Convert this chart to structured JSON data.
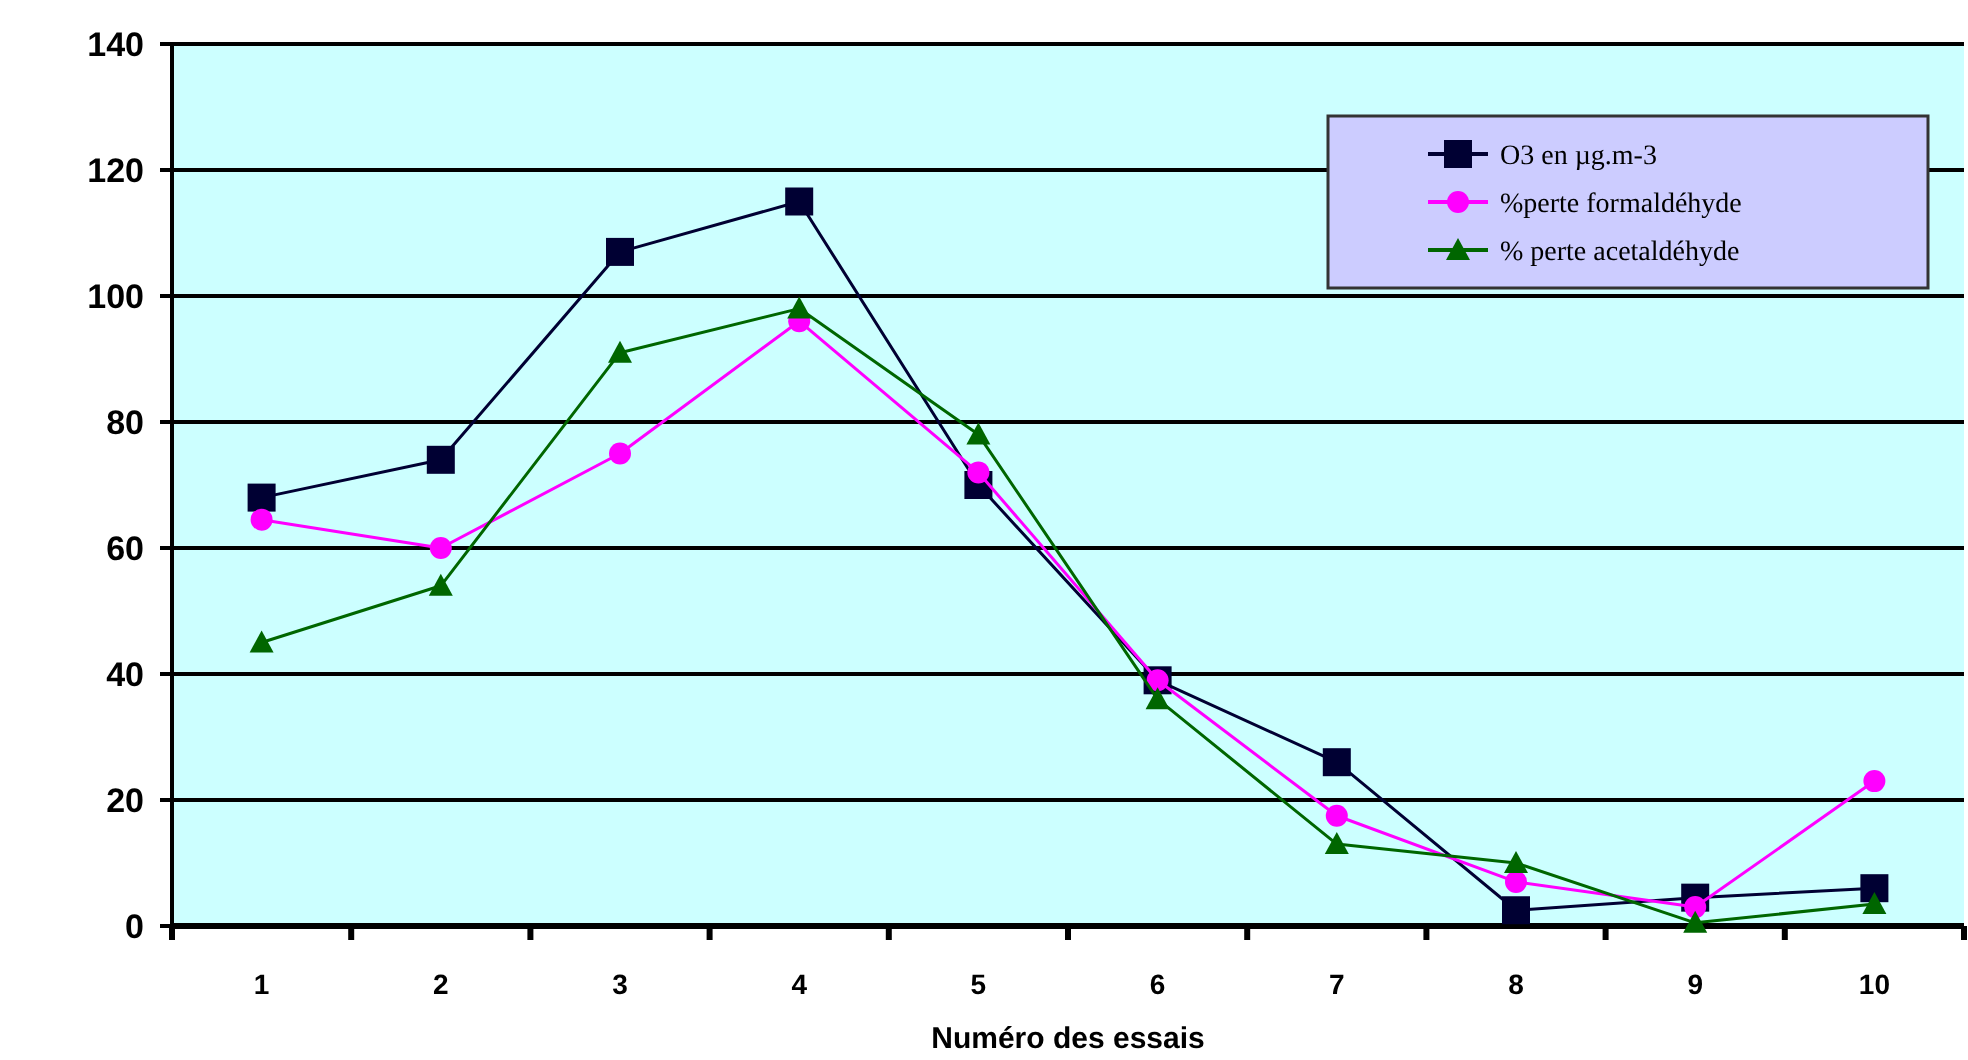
{
  "chart_data": {
    "type": "line",
    "xlabel": "Numéro des essais",
    "categories": [
      "1",
      "2",
      "3",
      "4",
      "5",
      "6",
      "7",
      "8",
      "9",
      "10"
    ],
    "series": [
      {
        "name": "O3 en µg.m-3",
        "color": "#000033",
        "marker": "square",
        "values": [
          68,
          74,
          107,
          115,
          70,
          39,
          26,
          2.5,
          4.5,
          6
        ]
      },
      {
        "name": "%perte formaldéhyde",
        "color": "#ff00ff",
        "marker": "circle",
        "values": [
          64.5,
          60,
          75,
          96,
          72,
          39,
          17.5,
          7,
          3,
          23
        ]
      },
      {
        "name": "% perte acetaldéhyde",
        "color": "#006600",
        "marker": "triangle",
        "values": [
          45,
          54,
          91,
          98,
          78,
          36,
          13,
          10,
          0.5,
          3.5
        ]
      }
    ],
    "ylim": [
      0,
      140
    ],
    "yticks": [
      0,
      20,
      40,
      60,
      80,
      100,
      120,
      140
    ],
    "grid": "y",
    "legend": "top right",
    "line_style": "solid"
  }
}
